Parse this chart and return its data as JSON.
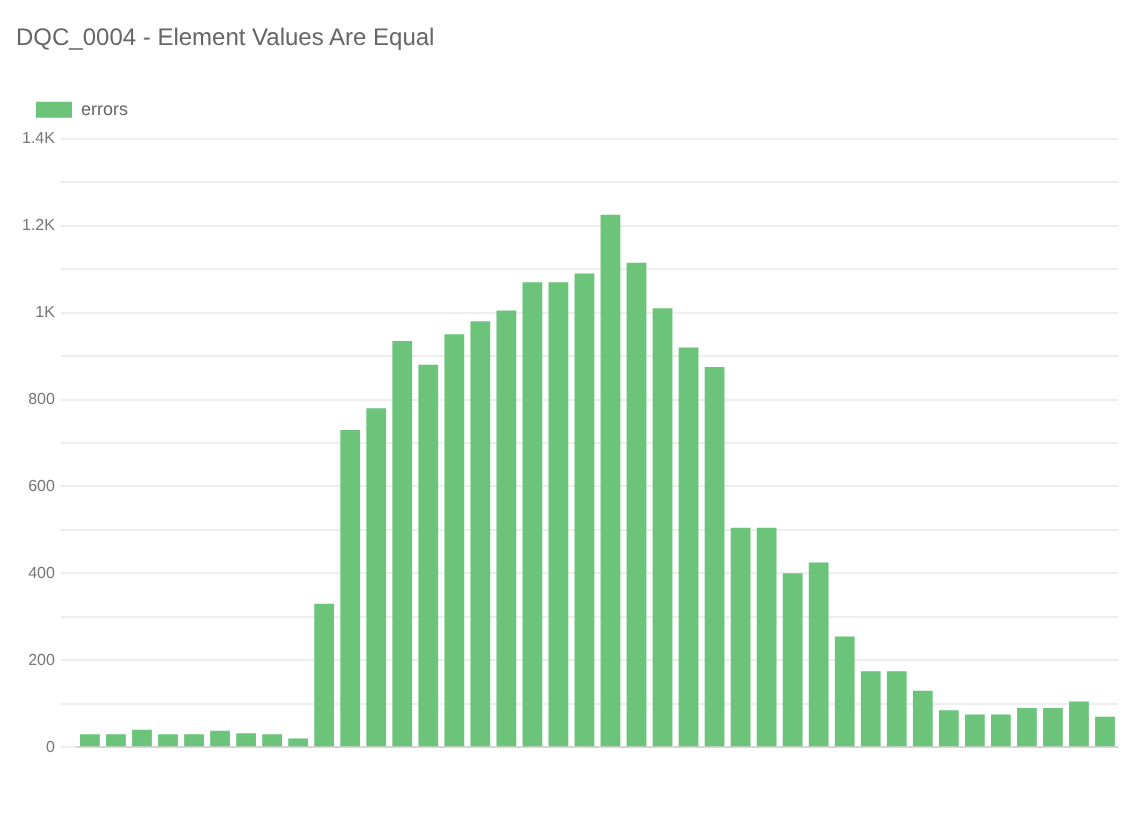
{
  "chart_data": {
    "type": "bar",
    "title": "DQC_0004 - Element Values Are Equal",
    "categories": [
      null,
      null,
      null,
      null,
      null,
      null,
      null,
      null,
      null,
      null,
      null,
      null,
      null,
      null,
      null,
      null,
      null,
      null,
      null,
      null,
      null,
      null,
      null,
      null,
      null,
      null,
      null,
      null,
      null,
      null,
      null,
      null,
      null,
      null,
      null,
      null,
      null,
      null,
      null,
      null
    ],
    "series": [
      {
        "name": "errors",
        "color": "#6cc47a",
        "values": [
          30,
          30,
          40,
          30,
          30,
          38,
          32,
          30,
          20,
          330,
          730,
          780,
          935,
          880,
          950,
          980,
          1005,
          1070,
          1070,
          1090,
          1225,
          1115,
          1010,
          920,
          875,
          505,
          505,
          400,
          425,
          255,
          175,
          175,
          130,
          85,
          75,
          75,
          90,
          90,
          105,
          70
        ]
      }
    ],
    "ylim": [
      0,
      1400
    ],
    "yticks": [
      0,
      {
        "value": 100,
        "label": null
      },
      {
        "value": 200,
        "label": "200"
      },
      {
        "value": 300,
        "label": null
      },
      {
        "value": 400,
        "label": "400"
      },
      {
        "value": 500,
        "label": null
      },
      {
        "value": 600,
        "label": "600"
      },
      {
        "value": 700,
        "label": null
      },
      {
        "value": 800,
        "label": "800"
      },
      {
        "value": 900,
        "label": null
      },
      {
        "value": 1000,
        "label": "1K"
      },
      {
        "value": 1100,
        "label": null
      },
      {
        "value": 1200,
        "label": "1.2K"
      },
      {
        "value": 1300,
        "label": null
      },
      {
        "value": 1400,
        "label": "1.4K"
      }
    ],
    "grid": "y",
    "legend": "top left"
  }
}
